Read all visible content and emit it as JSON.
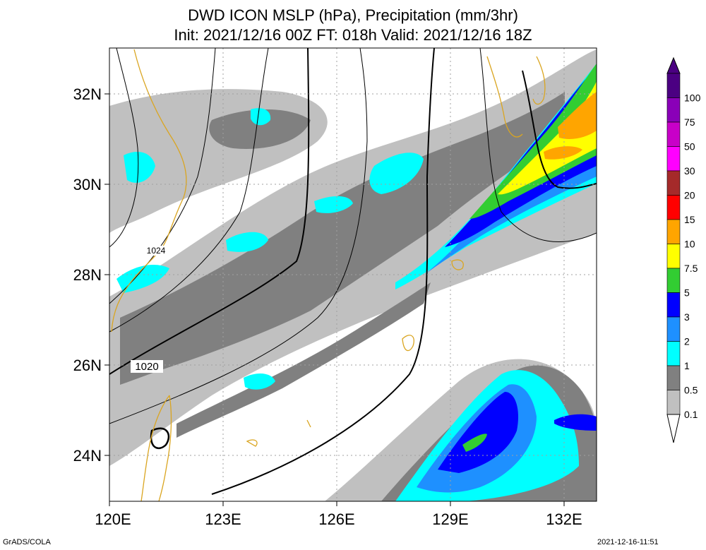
{
  "title": {
    "line1": "DWD ICON MSLP (hPa), Precipitation (mm/3hr)",
    "line2": "Init: 2021/12/16 00Z  FT: 018h  Valid: 2021/12/16 18Z"
  },
  "axes": {
    "lat_labels": [
      "32N",
      "30N",
      "28N",
      "26N",
      "24N"
    ],
    "lon_labels": [
      "120E",
      "123E",
      "126E",
      "129E",
      "132E"
    ],
    "lat_range": [
      23,
      33
    ],
    "lon_range": [
      120,
      133
    ]
  },
  "isobar_labels": [
    "1024",
    "1020"
  ],
  "legend": {
    "labels": [
      "100",
      "75",
      "50",
      "30",
      "20",
      "15",
      "10",
      "7.5",
      "5",
      "3",
      "2",
      "1",
      "0.5",
      "0.1"
    ],
    "colors": [
      "#4b0082",
      "#8a00b8",
      "#c800c8",
      "#ff00ff",
      "#a52a2a",
      "#ff0000",
      "#ffa500",
      "#ffff00",
      "#32cd32",
      "#0000ff",
      "#1e90ff",
      "#00ffff",
      "#808080",
      "#c0c0c0"
    ],
    "top_color": "#4b0082",
    "bottom_color": "#ffffff"
  },
  "footer": {
    "credit": "GrADS/COLA",
    "timestamp": "2021-12-16-11:51"
  }
}
